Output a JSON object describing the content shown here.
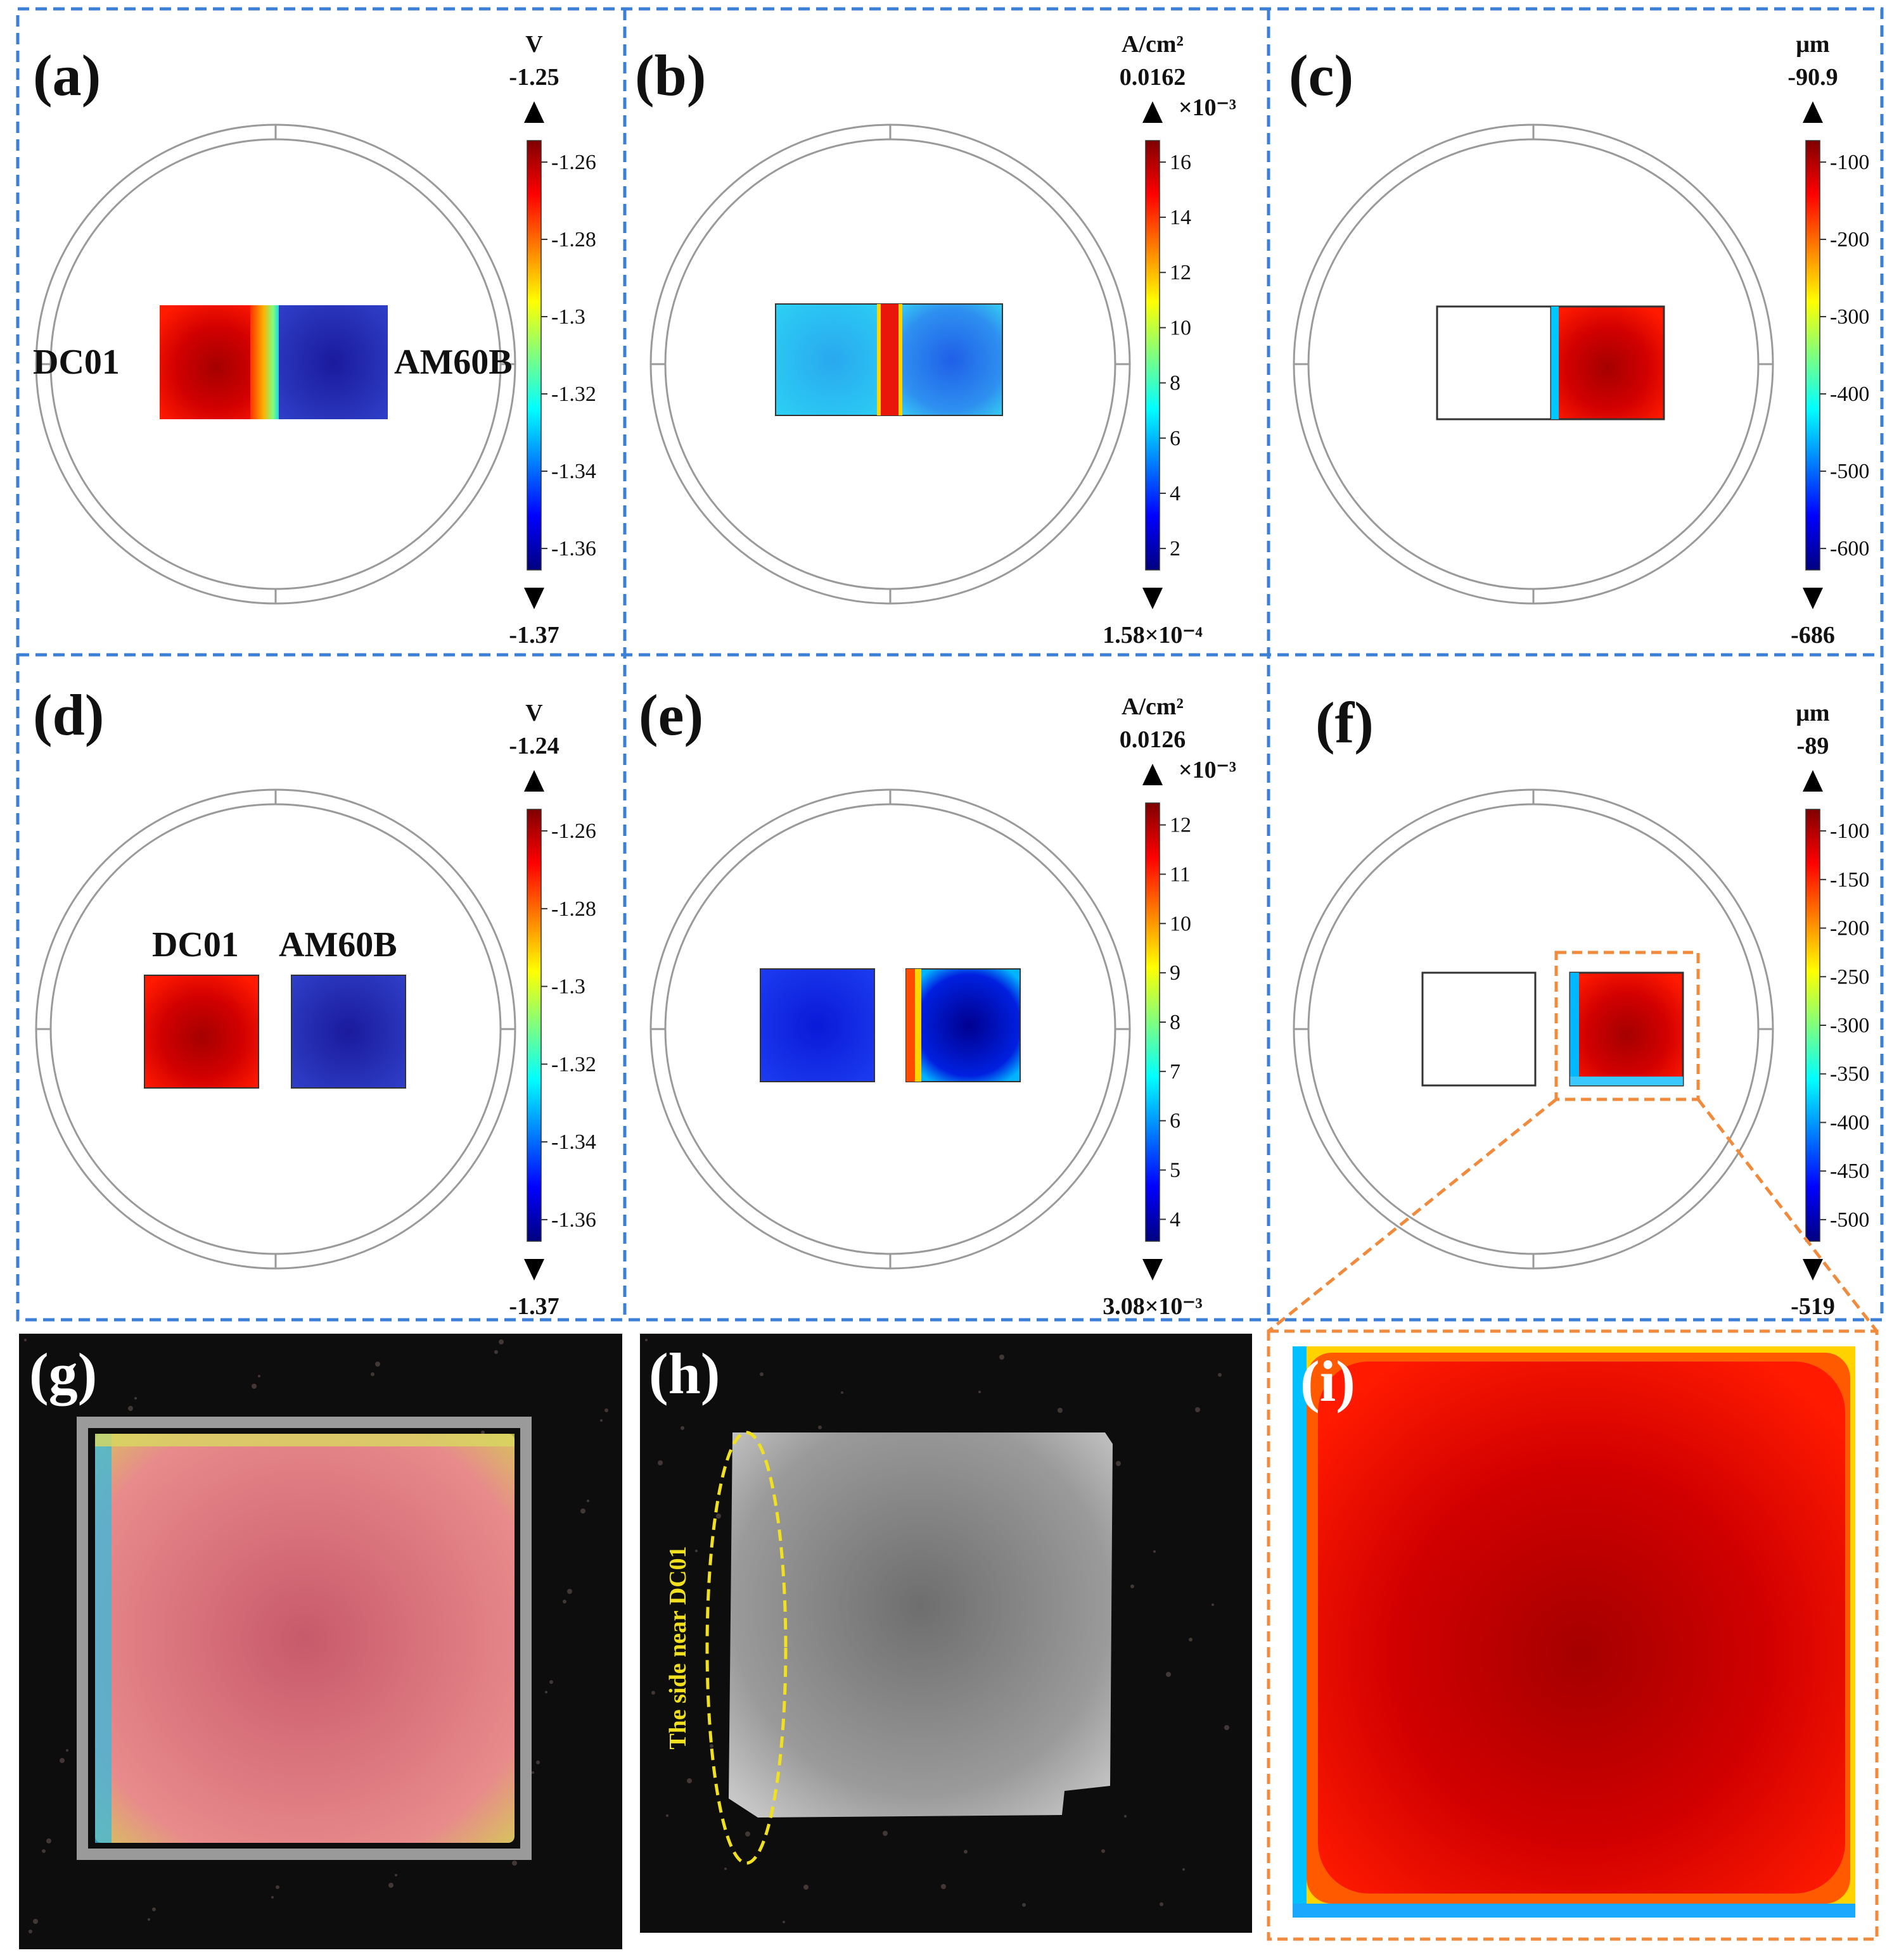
{
  "colors": {
    "dash_blue": "#3c7fd6",
    "dash_orange": "#f08a3c",
    "jet": [
      "#00007f",
      "#0000ff",
      "#007fff",
      "#00ffff",
      "#7fff7f",
      "#ffff00",
      "#ff7f00",
      "#ff0000",
      "#7f0000"
    ]
  },
  "panels": {
    "a": {
      "label": "(a)",
      "unit": "V",
      "max": "-1.25",
      "min": "-1.37",
      "ticks": [
        "-1.26",
        "-1.28",
        "-1.3",
        "-1.32",
        "-1.34",
        "-1.36"
      ],
      "left_material": "DC01",
      "right_material": "AM60B"
    },
    "b": {
      "label": "(b)",
      "unit": "A/cm²",
      "max": "0.0162",
      "min": "1.58×10⁻⁴",
      "multiplier": "×10⁻³",
      "ticks": [
        "16",
        "14",
        "12",
        "10",
        "8",
        "6",
        "4",
        "2"
      ]
    },
    "c": {
      "label": "(c)",
      "unit": "μm",
      "max": "-90.9",
      "min": "-686",
      "ticks": [
        "-100",
        "-200",
        "-300",
        "-400",
        "-500",
        "-600"
      ]
    },
    "d": {
      "label": "(d)",
      "unit": "V",
      "max": "-1.24",
      "min": "-1.37",
      "ticks": [
        "-1.26",
        "-1.28",
        "-1.3",
        "-1.32",
        "-1.34",
        "-1.36"
      ],
      "left_material": "DC01",
      "right_material": "AM60B"
    },
    "e": {
      "label": "(e)",
      "unit": "A/cm²",
      "max": "0.0126",
      "min": "3.08×10⁻³",
      "multiplier": "×10⁻³",
      "ticks": [
        "12",
        "11",
        "10",
        "9",
        "8",
        "7",
        "6",
        "5",
        "4"
      ]
    },
    "f": {
      "label": "(f)",
      "unit": "μm",
      "max": "-89",
      "min": "-519",
      "ticks": [
        "-100",
        "-150",
        "-200",
        "-250",
        "-300",
        "-350",
        "-400",
        "-450",
        "-500"
      ]
    },
    "g": {
      "label": "(g)"
    },
    "h": {
      "label": "(h)",
      "annotation": "The side near DC01"
    },
    "i": {
      "label": "(i)"
    }
  }
}
